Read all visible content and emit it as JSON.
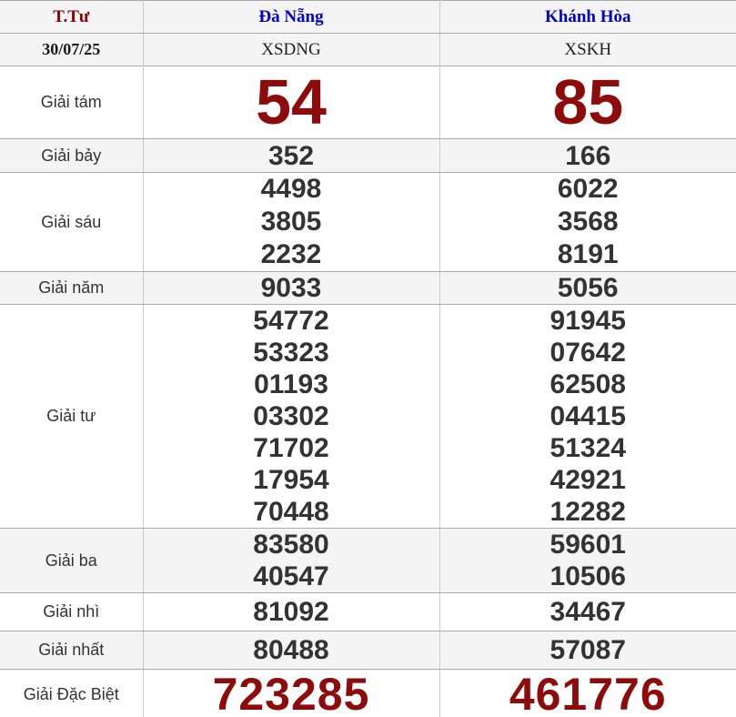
{
  "table": {
    "header": {
      "day": "T.Tư",
      "province1": "Đà Nẵng",
      "province2": "Khánh Hòa"
    },
    "subheader": {
      "date": "30/07/25",
      "station1": "XSDNG",
      "station2": "XSKH"
    },
    "rows": [
      {
        "id": "g8",
        "label": "Giải tám",
        "size": "xl",
        "shade": false,
        "col1": [
          "54"
        ],
        "col2": [
          "85"
        ]
      },
      {
        "id": "g7",
        "label": "Giải bảy",
        "size": "md",
        "shade": true,
        "col1": [
          "352"
        ],
        "col2": [
          "166"
        ]
      },
      {
        "id": "g6",
        "label": "Giải sáu",
        "size": "md",
        "shade": false,
        "col1": [
          "4498",
          "3805",
          "2232"
        ],
        "col2": [
          "6022",
          "3568",
          "8191"
        ]
      },
      {
        "id": "g5",
        "label": "Giải năm",
        "size": "md",
        "shade": true,
        "col1": [
          "9033"
        ],
        "col2": [
          "5056"
        ]
      },
      {
        "id": "g4",
        "label": "Giải tư",
        "size": "md",
        "shade": false,
        "col1": [
          "54772",
          "53323",
          "01193",
          "03302",
          "71702",
          "17954",
          "70448"
        ],
        "col2": [
          "91945",
          "07642",
          "62508",
          "04415",
          "51324",
          "42921",
          "12282"
        ]
      },
      {
        "id": "g3",
        "label": "Giải ba",
        "size": "md",
        "shade": true,
        "col1": [
          "83580",
          "40547"
        ],
        "col2": [
          "59601",
          "10506"
        ]
      },
      {
        "id": "g2",
        "label": "Giải nhì",
        "size": "md",
        "shade": false,
        "col1": [
          "81092"
        ],
        "col2": [
          "34467"
        ]
      },
      {
        "id": "g1",
        "label": "Giải nhất",
        "size": "md",
        "shade": true,
        "col1": [
          "80488"
        ],
        "col2": [
          "57087"
        ]
      },
      {
        "id": "db",
        "label": "Giải Đặc Biệt",
        "size": "lg",
        "shade": false,
        "col1": [
          "723285"
        ],
        "col2": [
          "461776"
        ]
      }
    ],
    "colors": {
      "special_number_red": "#8e0b0b",
      "weekday_red": "#8b0000",
      "province_blue": "#0000cc",
      "number_text": "#333333",
      "shaded_row_bg": "#f4f4f4",
      "row_border": "#aaaaaa",
      "column_border": "#cccccc"
    }
  }
}
